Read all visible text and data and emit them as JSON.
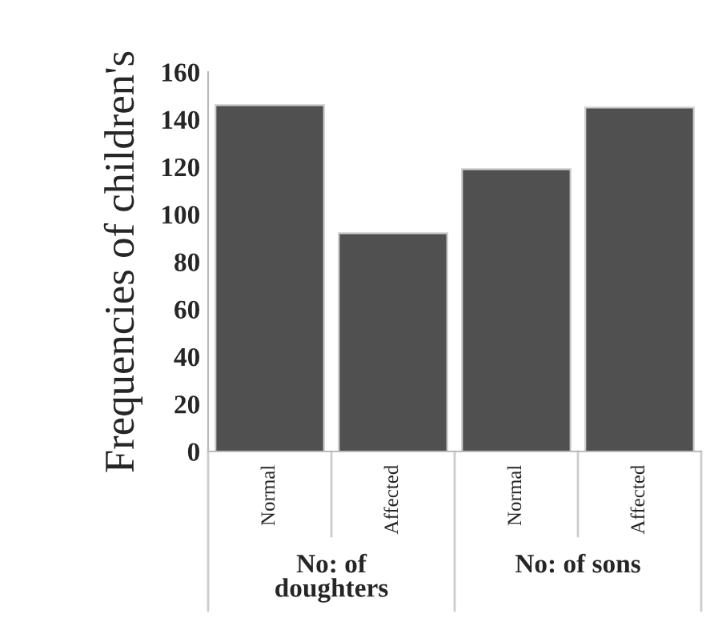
{
  "chart_data": {
    "type": "bar",
    "ylabel": "Frequencies of children's",
    "categories": [
      "Normal",
      "Affected",
      "Normal",
      "Affected"
    ],
    "values": [
      146,
      92,
      119,
      145
    ],
    "color": "#505050",
    "ylim": [
      0,
      160
    ],
    "yticks": [
      0,
      20,
      40,
      60,
      80,
      100,
      120,
      140,
      160
    ],
    "grid": false,
    "annotations": [
      "No: of\ndoughters",
      "No: of sons"
    ]
  }
}
